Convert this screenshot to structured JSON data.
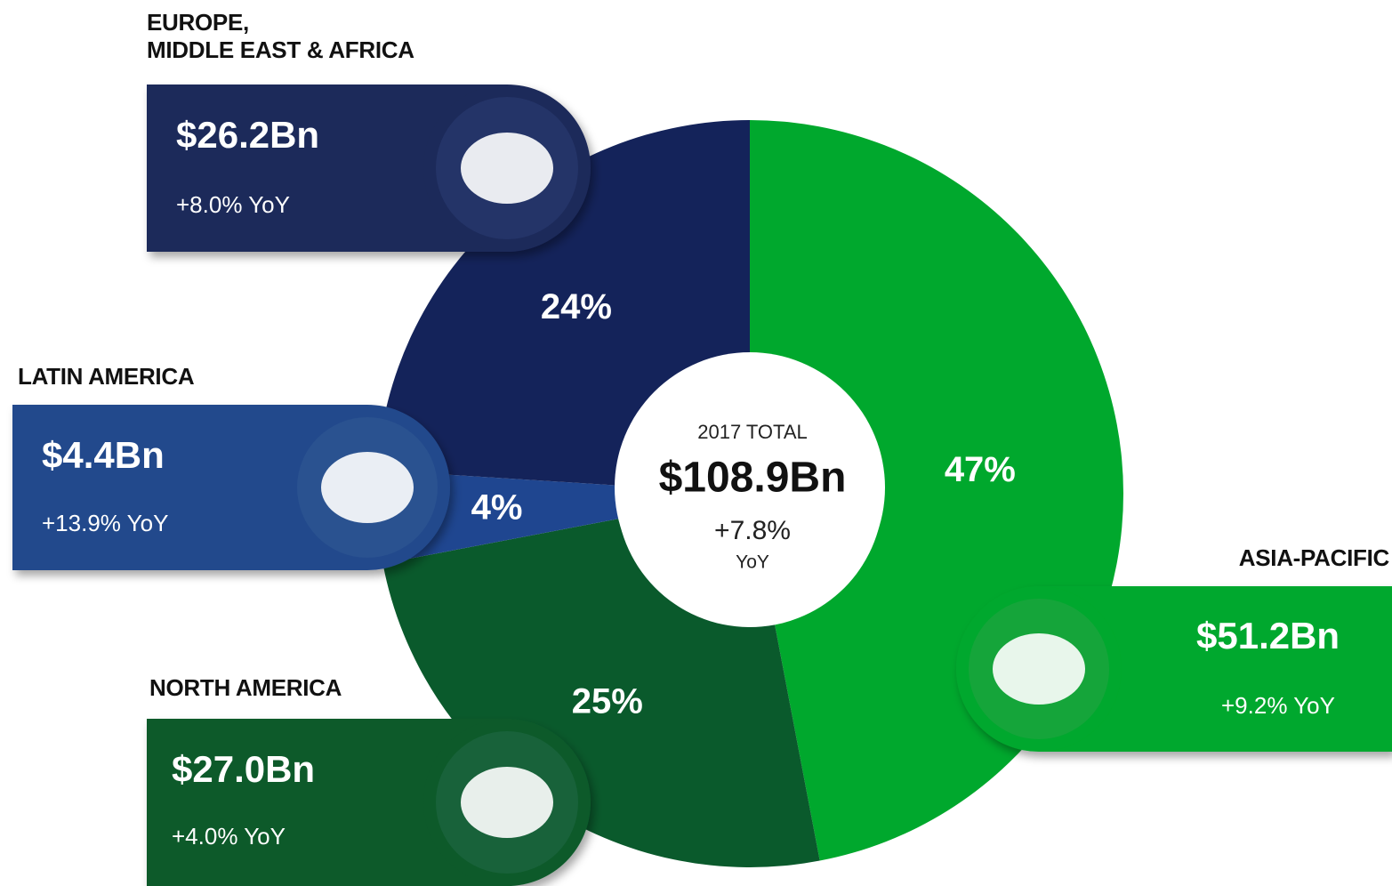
{
  "chart_data": {
    "type": "donut",
    "categories": [
      "ASIA-PACIFIC",
      "NORTH AMERICA",
      "LATIN AMERICA",
      "EUROPE,\nMIDDLE EAST & AFRICA"
    ],
    "values": [
      47,
      25,
      4,
      24
    ],
    "value_labels": [
      "47%",
      "25%",
      "4%",
      "24%"
    ],
    "amounts": [
      "$51.2Bn",
      "$27.0Bn",
      "$4.4Bn",
      "$26.2Bn"
    ],
    "yoy": [
      "+9.2% YoY",
      "+4.0% YoY",
      "+13.9% YoY",
      "+8.0% YoY"
    ],
    "colors": [
      "#00a82d",
      "#0a5a2c",
      "#1f4690",
      "#14235a"
    ],
    "center_title": "2017 TOTAL",
    "center_value": "$108.9Bn",
    "center_change": "+7.8%",
    "center_unit": "YoY"
  }
}
